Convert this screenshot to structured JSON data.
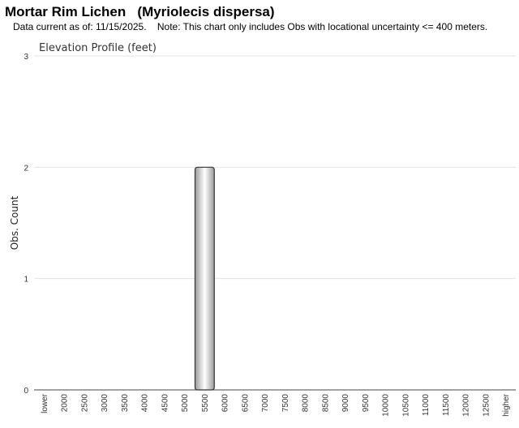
{
  "chart_data": {
    "type": "bar",
    "title": "Mortar Rim Lichen   (Myriolecis dispersa)",
    "subtitle": "Data current as of: 11/15/2025.    Note: This chart only includes Obs with locational uncertainty <= 400 meters.",
    "chart_title": "Elevation Profile (feet)",
    "y_label": "Obs. Count",
    "categories": [
      "lower",
      "2000",
      "2500",
      "3000",
      "3500",
      "4000",
      "4500",
      "5000",
      "5500",
      "6000",
      "6500",
      "7000",
      "7500",
      "8000",
      "8500",
      "9000",
      "9500",
      "10000",
      "10500",
      "11000",
      "11500",
      "12000",
      "12500",
      "higher"
    ],
    "values": [
      0,
      0,
      0,
      0,
      0,
      0,
      0,
      0,
      2,
      0,
      0,
      0,
      0,
      0,
      0,
      0,
      0,
      0,
      0,
      0,
      0,
      0,
      0,
      0
    ],
    "color": "#9a9a9a",
    "ylim": [
      0,
      3
    ],
    "yticks": [
      0,
      1,
      2,
      3
    ],
    "grid": true
  }
}
